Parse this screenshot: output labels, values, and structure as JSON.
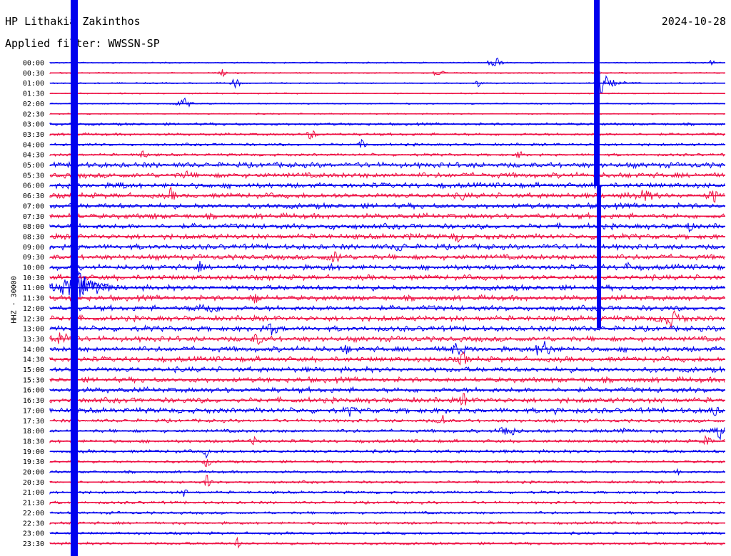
{
  "header": {
    "station": "HP Lithakia Zakinthos",
    "date": "2024-10-28",
    "filter": "Applied filter: WWSSN-SP"
  },
  "chart_data": {
    "type": "helicorder",
    "ylabel": "HHZ - 30000",
    "trace_colors": [
      "#0000ee",
      "#ee1144"
    ],
    "rows": [
      {
        "label": "00:00",
        "color": "#0000ee"
      },
      {
        "label": "00:30",
        "color": "#ee1144"
      },
      {
        "label": "01:00",
        "color": "#0000ee"
      },
      {
        "label": "01:30",
        "color": "#ee1144"
      },
      {
        "label": "02:00",
        "color": "#0000ee"
      },
      {
        "label": "02:30",
        "color": "#ee1144"
      },
      {
        "label": "03:00",
        "color": "#0000ee"
      },
      {
        "label": "03:30",
        "color": "#ee1144"
      },
      {
        "label": "04:00",
        "color": "#0000ee"
      },
      {
        "label": "04:30",
        "color": "#ee1144"
      },
      {
        "label": "05:00",
        "color": "#0000ee"
      },
      {
        "label": "05:30",
        "color": "#ee1144"
      },
      {
        "label": "06:00",
        "color": "#0000ee"
      },
      {
        "label": "06:30",
        "color": "#ee1144"
      },
      {
        "label": "07:00",
        "color": "#0000ee"
      },
      {
        "label": "07:30",
        "color": "#ee1144"
      },
      {
        "label": "08:00",
        "color": "#0000ee"
      },
      {
        "label": "08:30",
        "color": "#ee1144"
      },
      {
        "label": "09:00",
        "color": "#0000ee"
      },
      {
        "label": "09:30",
        "color": "#ee1144"
      },
      {
        "label": "10:00",
        "color": "#0000ee"
      },
      {
        "label": "10:30",
        "color": "#ee1144"
      },
      {
        "label": "11:00",
        "color": "#0000ee"
      },
      {
        "label": "11:30",
        "color": "#ee1144"
      },
      {
        "label": "12:00",
        "color": "#0000ee"
      },
      {
        "label": "12:30",
        "color": "#ee1144"
      },
      {
        "label": "13:00",
        "color": "#0000ee"
      },
      {
        "label": "13:30",
        "color": "#ee1144"
      },
      {
        "label": "14:00",
        "color": "#0000ee"
      },
      {
        "label": "14:30",
        "color": "#ee1144"
      },
      {
        "label": "15:00",
        "color": "#0000ee"
      },
      {
        "label": "15:30",
        "color": "#ee1144"
      },
      {
        "label": "16:00",
        "color": "#0000ee"
      },
      {
        "label": "16:30",
        "color": "#ee1144"
      },
      {
        "label": "17:00",
        "color": "#0000ee"
      },
      {
        "label": "17:30",
        "color": "#ee1144"
      },
      {
        "label": "18:00",
        "color": "#0000ee"
      },
      {
        "label": "18:30",
        "color": "#ee1144"
      },
      {
        "label": "19:00",
        "color": "#0000ee"
      },
      {
        "label": "19:30",
        "color": "#ee1144"
      },
      {
        "label": "20:00",
        "color": "#0000ee"
      },
      {
        "label": "20:30",
        "color": "#ee1144"
      },
      {
        "label": "21:00",
        "color": "#0000ee"
      },
      {
        "label": "21:30",
        "color": "#ee1144"
      },
      {
        "label": "22:00",
        "color": "#0000ee"
      },
      {
        "label": "22:30",
        "color": "#ee1144"
      },
      {
        "label": "23:00",
        "color": "#0000ee"
      },
      {
        "label": "23:30",
        "color": "#ee1144"
      }
    ]
  }
}
